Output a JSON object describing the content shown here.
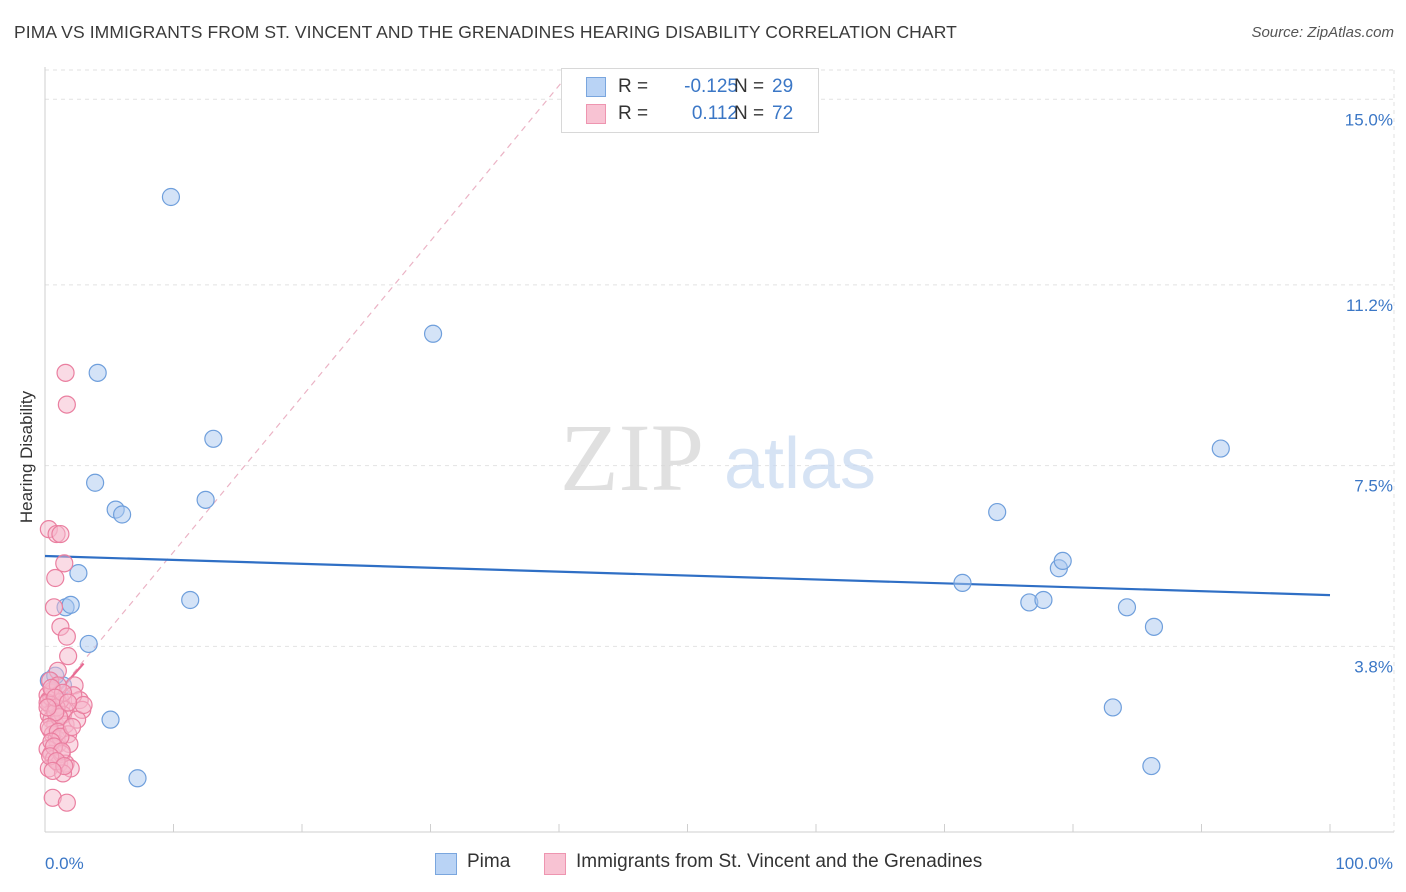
{
  "header": {
    "title": "PIMA VS IMMIGRANTS FROM ST. VINCENT AND THE GRENADINES HEARING DISABILITY CORRELATION CHART",
    "source": "Source: ZipAtlas.com"
  },
  "watermark": {
    "zip": "ZIP",
    "atlas": "atlas"
  },
  "legend": {
    "rows": [
      {
        "r_label": "R =",
        "r_value": "-0.125",
        "n_label": "N =",
        "n_value": "29"
      },
      {
        "r_label": "R =",
        "r_value": "0.112",
        "n_label": "N =",
        "n_value": "72"
      }
    ]
  },
  "bottom_legend": {
    "pima": "Pima",
    "svg": "Immigrants from St. Vincent and the Grenadines"
  },
  "colors": {
    "pima_fill": "#a9c8f0",
    "pima_stroke": "#6f9fdc",
    "pima_line": "#2f6fc5",
    "svg_fill": "#f6b8cb",
    "svg_stroke": "#ea7fa0",
    "svg_line": "#e86a92",
    "grid": "#e2e2e2",
    "tick_label": "#3b77c6"
  },
  "chart_data": {
    "type": "scatter",
    "title": "PIMA VS IMMIGRANTS FROM ST. VINCENT AND THE GRENADINES HEARING DISABILITY CORRELATION CHART",
    "xlabel": "",
    "ylabel": "Hearing Disability",
    "xlim": [
      0,
      100
    ],
    "ylim": [
      0,
      15.6
    ],
    "x_tick_labels": [
      "0.0%",
      "100.0%"
    ],
    "y_ticks": [
      3.8,
      7.5,
      11.2,
      15.0
    ],
    "y_tick_labels": [
      "3.8%",
      "7.5%",
      "11.2%",
      "15.0%"
    ],
    "grid": true,
    "series": [
      {
        "name": "Pima",
        "r": -0.125,
        "n": 29,
        "trend": {
          "x": [
            0,
            100
          ],
          "y": [
            5.65,
            4.85
          ]
        },
        "points": [
          [
            0.3,
            3.1
          ],
          [
            1.4,
            3.0
          ],
          [
            1.6,
            4.6
          ],
          [
            2.0,
            4.65
          ],
          [
            2.6,
            5.3
          ],
          [
            3.4,
            3.85
          ],
          [
            3.9,
            7.15
          ],
          [
            4.1,
            9.4
          ],
          [
            5.1,
            2.3
          ],
          [
            5.5,
            6.6
          ],
          [
            6.0,
            6.5
          ],
          [
            7.2,
            1.1
          ],
          [
            9.8,
            13.0
          ],
          [
            11.3,
            4.75
          ],
          [
            12.5,
            6.8
          ],
          [
            13.1,
            8.05
          ],
          [
            30.2,
            10.2
          ],
          [
            71.4,
            5.1
          ],
          [
            74.1,
            6.55
          ],
          [
            76.6,
            4.7
          ],
          [
            77.7,
            4.75
          ],
          [
            78.9,
            5.4
          ],
          [
            79.2,
            5.55
          ],
          [
            83.1,
            2.55
          ],
          [
            84.2,
            4.6
          ],
          [
            86.1,
            1.35
          ],
          [
            86.3,
            4.2
          ],
          [
            91.5,
            7.85
          ],
          [
            0.8,
            3.2
          ]
        ]
      },
      {
        "name": "Immigrants from St. Vincent and the Grenadines",
        "r": 0.112,
        "n": 72,
        "trend": {
          "x": [
            0,
            3.0
          ],
          "y": [
            2.55,
            3.45
          ]
        },
        "trend_extended": {
          "x": [
            0,
            41
          ],
          "y": [
            2.55,
            15.6
          ]
        },
        "points": [
          [
            0.2,
            2.8
          ],
          [
            0.3,
            2.7
          ],
          [
            0.4,
            2.6
          ],
          [
            0.5,
            2.75
          ],
          [
            0.6,
            2.85
          ],
          [
            0.7,
            2.5
          ],
          [
            0.3,
            2.4
          ],
          [
            0.5,
            2.3
          ],
          [
            0.8,
            2.2
          ],
          [
            0.4,
            2.1
          ],
          [
            0.6,
            2.0
          ],
          [
            0.9,
            1.9
          ],
          [
            1.0,
            1.8
          ],
          [
            0.2,
            1.7
          ],
          [
            0.5,
            1.6
          ],
          [
            0.7,
            1.5
          ],
          [
            1.1,
            1.4
          ],
          [
            0.3,
            1.3
          ],
          [
            0.6,
            2.9
          ],
          [
            1.3,
            2.6
          ],
          [
            1.5,
            2.5
          ],
          [
            1.2,
            2.7
          ],
          [
            1.4,
            2.4
          ],
          [
            1.6,
            2.2
          ],
          [
            1.8,
            2.0
          ],
          [
            1.9,
            1.8
          ],
          [
            1.3,
            1.6
          ],
          [
            1.6,
            1.4
          ],
          [
            2.0,
            1.3
          ],
          [
            1.4,
            1.2
          ],
          [
            0.6,
            0.7
          ],
          [
            1.7,
            0.6
          ],
          [
            1.6,
            9.4
          ],
          [
            1.7,
            8.75
          ],
          [
            0.3,
            6.2
          ],
          [
            0.9,
            6.1
          ],
          [
            1.2,
            6.1
          ],
          [
            1.5,
            5.5
          ],
          [
            0.8,
            5.2
          ],
          [
            0.7,
            4.6
          ],
          [
            1.2,
            4.2
          ],
          [
            1.7,
            4.0
          ],
          [
            1.8,
            3.6
          ],
          [
            1.0,
            3.3
          ],
          [
            2.3,
            3.0
          ],
          [
            2.7,
            2.7
          ],
          [
            2.9,
            2.5
          ],
          [
            2.2,
            2.8
          ],
          [
            2.5,
            2.3
          ],
          [
            3.0,
            2.6
          ],
          [
            0.4,
            3.1
          ],
          [
            0.2,
            2.65
          ],
          [
            0.9,
            2.55
          ],
          [
            1.1,
            2.35
          ],
          [
            0.8,
            2.45
          ],
          [
            0.3,
            2.15
          ],
          [
            1.0,
            2.05
          ],
          [
            1.2,
            1.95
          ],
          [
            0.5,
            1.85
          ],
          [
            0.7,
            1.75
          ],
          [
            1.3,
            1.65
          ],
          [
            0.4,
            1.55
          ],
          [
            0.9,
            1.45
          ],
          [
            1.5,
            1.35
          ],
          [
            0.6,
            1.25
          ],
          [
            1.0,
            3.0
          ],
          [
            0.5,
            2.95
          ],
          [
            1.4,
            2.85
          ],
          [
            0.8,
            2.75
          ],
          [
            0.2,
            2.55
          ],
          [
            1.8,
            2.65
          ],
          [
            2.1,
            2.15
          ]
        ]
      }
    ]
  }
}
